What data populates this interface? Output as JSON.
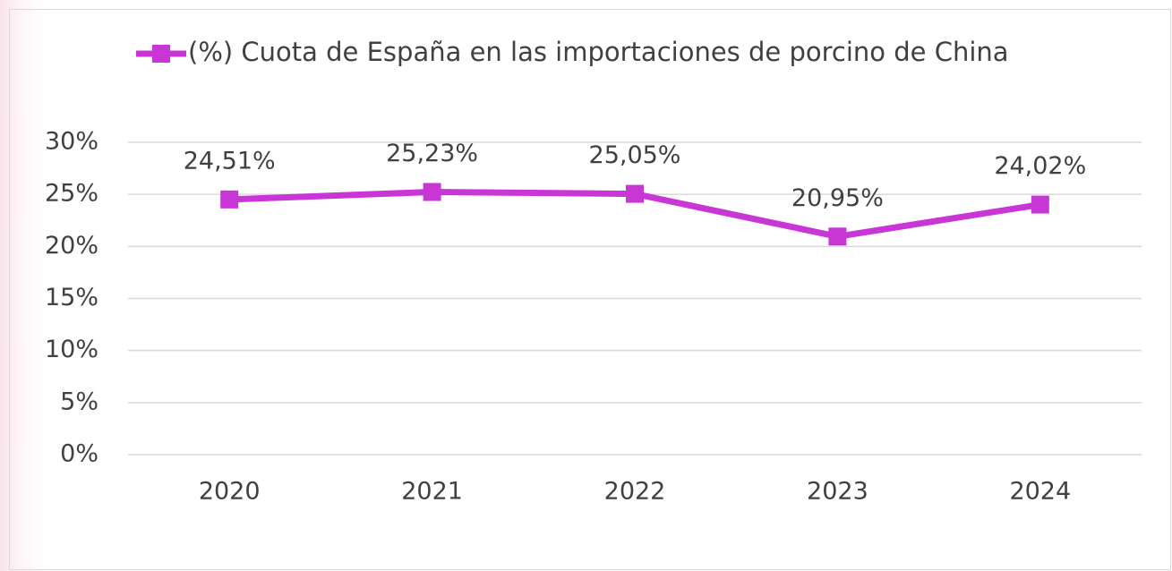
{
  "chart_data": {
    "type": "line",
    "categories": [
      "2020",
      "2021",
      "2022",
      "2023",
      "2024"
    ],
    "series": [
      {
        "name": "(%) Cuota de España en las importaciones de porcino de China",
        "color": "#c837d6",
        "values": [
          24.51,
          25.23,
          25.05,
          20.95,
          24.02
        ],
        "value_labels": [
          "24,51%",
          "25,23%",
          "25,05%",
          "20,95%",
          "24,02%"
        ]
      }
    ],
    "ylim": [
      0,
      30
    ],
    "yticks": [
      {
        "value": 0,
        "label": "0%"
      },
      {
        "value": 5,
        "label": "5%"
      },
      {
        "value": 10,
        "label": "10%"
      },
      {
        "value": 15,
        "label": "15%"
      },
      {
        "value": 20,
        "label": "20%"
      },
      {
        "value": 25,
        "label": "25%"
      },
      {
        "value": 30,
        "label": "30%"
      }
    ],
    "grid": true,
    "legend": "top"
  }
}
